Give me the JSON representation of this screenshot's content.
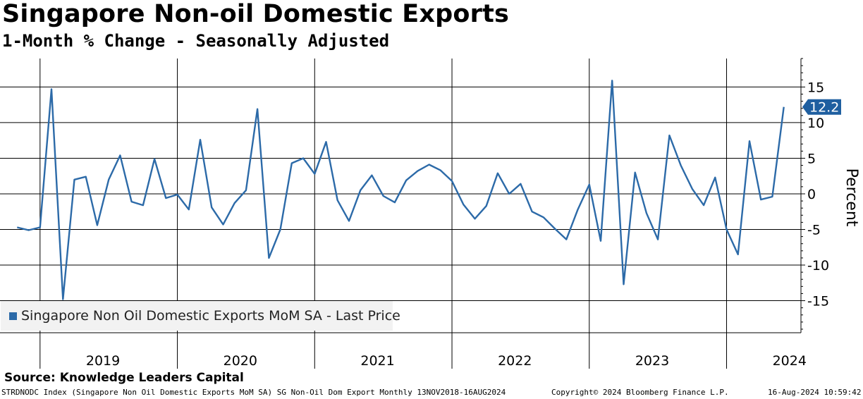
{
  "header": {
    "title": "Singapore Non-oil Domestic Exports",
    "subtitle": "1-Month % Change - Seasonally Adjusted"
  },
  "source": "Source: Knowledge Leaders Capital",
  "footer": {
    "left": "STRDNODC Index (Singapore Non Oil Domestic Exports MoM SA) SG Non-Oil Dom Export  Monthly 13NOV2018-16AUG2024",
    "center": "Copyright© 2024 Bloomberg Finance L.P.",
    "right": "16-Aug-2024 10:59:42"
  },
  "legend": {
    "label": "Singapore Non Oil Domestic Exports MoM SA - Last Price"
  },
  "colors": {
    "series": "#2c6aa8",
    "last_badge": "#1f5fa0"
  },
  "chart_data": {
    "type": "line",
    "title": "Singapore Non-oil Domestic Exports",
    "subtitle": "1-Month % Change - Seasonally Adjusted",
    "ylabel": "Percent",
    "xlabel": "",
    "ylim": [
      -19.5,
      19
    ],
    "yticks": [
      15,
      10,
      5,
      0,
      -5,
      -10,
      -15
    ],
    "y_tick_labels": [
      "15",
      "10",
      "5",
      "0",
      "-5",
      "-10",
      "-15"
    ],
    "year_labels": [
      "2019",
      "2020",
      "2021",
      "2022",
      "2023",
      "2024"
    ],
    "x_range_months": [
      -1.5,
      68.5
    ],
    "series": [
      {
        "name": "Singapore Non Oil Domestic Exports MoM SA - Last Price",
        "start": "2018-11",
        "values": [
          -4.7,
          -5.1,
          -4.7,
          14.7,
          -14.8,
          2.0,
          2.4,
          -4.4,
          2.0,
          5.4,
          -1.1,
          -1.6,
          4.9,
          -0.6,
          -0.1,
          -2.2,
          7.6,
          -1.9,
          -4.3,
          -1.3,
          0.5,
          11.9,
          -9.0,
          -5.0,
          4.3,
          5.0,
          2.8,
          7.3,
          -0.9,
          -3.8,
          0.5,
          2.6,
          -0.3,
          -1.2,
          1.9,
          3.2,
          4.1,
          3.3,
          1.8,
          -1.5,
          -3.5,
          -1.7,
          2.9,
          0.0,
          1.4,
          -2.5,
          -3.3,
          -4.9,
          -6.4,
          -2.2,
          1.3,
          -6.6,
          15.9,
          -12.7,
          3.0,
          -2.7,
          -6.4,
          8.2,
          4.0,
          0.7,
          -1.6,
          2.3,
          -5.0,
          -8.5,
          7.4,
          -0.8,
          -0.4,
          12.2
        ]
      }
    ],
    "last_value_label": "12.2"
  }
}
